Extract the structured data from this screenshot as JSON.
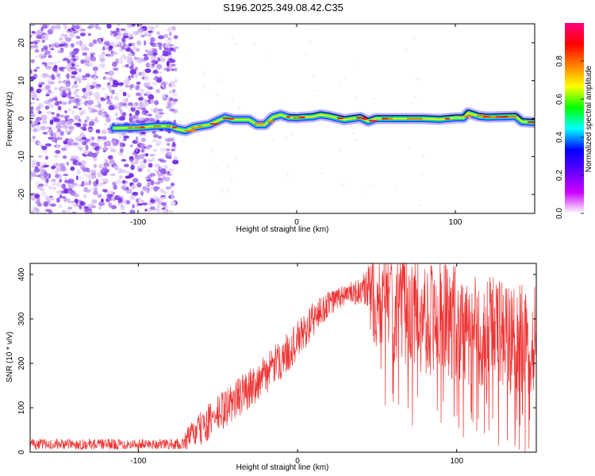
{
  "title": "S196.2025.349.08.42.C35",
  "chart_data": [
    {
      "type": "heatmap",
      "name": "spectrogram",
      "xlabel": "Height of straight line (km)",
      "ylabel": "Frequency (Hz)",
      "xlim": [
        -168,
        150
      ],
      "ylim": [
        -25,
        25
      ],
      "xticks": [
        -100,
        0,
        100
      ],
      "yticks": [
        -20,
        -10,
        0,
        10,
        20
      ],
      "xtick_labels": [
        "-100",
        "0",
        "100"
      ],
      "ytick_labels": [
        "-20",
        "-10",
        "0",
        "10",
        "20"
      ],
      "noise_region_x": [
        -168,
        -80
      ],
      "signal_line": {
        "x": [
          -115,
          -100,
          -90,
          -80,
          -75,
          -70,
          -65,
          -55,
          -50,
          -45,
          -40,
          -30,
          -25,
          -20,
          -15,
          -10,
          -5,
          0,
          5,
          10,
          15,
          20,
          25,
          30,
          40,
          45,
          50,
          60,
          70,
          80,
          90,
          100,
          105,
          108,
          115,
          120,
          130,
          138,
          142,
          150
        ],
        "y": [
          -2.5,
          -2.4,
          -2.0,
          -2.0,
          -2.8,
          -3.2,
          -2.3,
          -1.6,
          -0.6,
          0.3,
          -0.3,
          -0.3,
          -1.6,
          -1.6,
          0.4,
          1.0,
          0.3,
          0.2,
          0.4,
          0.5,
          1.0,
          0.7,
          0.2,
          -0.3,
          0.3,
          -0.7,
          0.0,
          0.0,
          0.0,
          0.0,
          -0.2,
          0.2,
          0.2,
          1.5,
          0.6,
          0.4,
          0.5,
          0.6,
          -0.8,
          -1.0
        ]
      },
      "colorbar": {
        "label": "Normalized spectral amplitude",
        "range": [
          0,
          1
        ],
        "ticks": [
          0.0,
          0.2,
          0.4,
          0.6,
          0.8
        ],
        "tick_labels": [
          "0.0",
          "0.2",
          "0.4",
          "0.6",
          "0.8"
        ],
        "colors": [
          "#ffffff",
          "#cc00ff",
          "#6000ff",
          "#0000ff",
          "#00ffff",
          "#00ff00",
          "#ffff00",
          "#ff8000",
          "#ff0000",
          "#ff0080"
        ]
      }
    },
    {
      "type": "line",
      "name": "snr",
      "xlabel": "Height of straight line (km)",
      "ylabel": "SNR (10 * v/v)",
      "xlim": [
        -168,
        150
      ],
      "ylim": [
        0,
        425
      ],
      "xticks": [
        -100,
        0,
        100
      ],
      "yticks": [
        0,
        100,
        200,
        300,
        400
      ],
      "xtick_labels": [
        "-100",
        "0",
        "100"
      ],
      "ytick_labels": [
        "0",
        "100",
        "200",
        "300",
        "400"
      ],
      "color": "#ee3333",
      "envelope": {
        "x": [
          -168,
          -72,
          -70,
          -60,
          -50,
          -40,
          -30,
          -20,
          -10,
          0,
          10,
          20,
          30,
          40,
          50,
          60,
          70,
          80,
          90,
          100,
          110,
          120,
          130,
          140,
          150
        ],
        "center": [
          18,
          18,
          30,
          55,
          85,
          115,
          145,
          175,
          210,
          250,
          300,
          335,
          355,
          360,
          345,
          330,
          320,
          305,
          300,
          290,
          270,
          270,
          260,
          255,
          250
        ],
        "spread": [
          12,
          12,
          25,
          40,
          45,
          45,
          45,
          45,
          45,
          45,
          40,
          30,
          25,
          30,
          120,
          130,
          130,
          130,
          130,
          130,
          130,
          130,
          130,
          130,
          130
        ]
      }
    }
  ]
}
